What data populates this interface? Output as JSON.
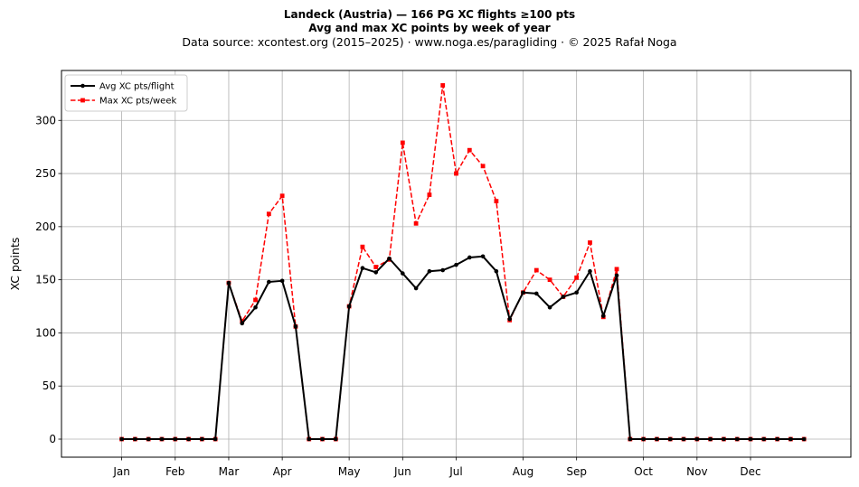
{
  "chart_data": {
    "type": "line",
    "title": "Landeck (Austria)  —  166 PG XC flights ≥100 pts",
    "subtitle": "Avg and max XC points by week of year",
    "source": "Data source: xcontest.org (2015–2025)  ·  www.noga.es/paragliding  ·  © 2025 Rafał Noga",
    "xlabel": "",
    "ylabel": "XC points",
    "x": [
      1,
      2,
      3,
      4,
      5,
      6,
      7,
      8,
      9,
      10,
      11,
      12,
      13,
      14,
      15,
      16,
      17,
      18,
      19,
      20,
      21,
      22,
      23,
      24,
      25,
      26,
      27,
      28,
      29,
      30,
      31,
      32,
      33,
      34,
      35,
      36,
      37,
      38,
      39,
      40,
      41,
      42,
      43,
      44,
      45,
      46,
      47,
      48,
      49,
      50,
      51,
      52
    ],
    "xlim": [
      -3.5,
      55.5
    ],
    "ylim": [
      -17,
      347
    ],
    "yticks": [
      0,
      50,
      100,
      150,
      200,
      250,
      300
    ],
    "xticks": [
      {
        "label": "Jan",
        "pos": 1
      },
      {
        "label": "Feb",
        "pos": 5
      },
      {
        "label": "Mar",
        "pos": 9
      },
      {
        "label": "Apr",
        "pos": 13
      },
      {
        "label": "May",
        "pos": 18
      },
      {
        "label": "Jun",
        "pos": 22
      },
      {
        "label": "Jul",
        "pos": 26
      },
      {
        "label": "Aug",
        "pos": 31
      },
      {
        "label": "Sep",
        "pos": 35
      },
      {
        "label": "Oct",
        "pos": 40
      },
      {
        "label": "Nov",
        "pos": 44
      },
      {
        "label": "Dec",
        "pos": 48
      }
    ],
    "grid": true,
    "legend_position": "upper-left",
    "series": [
      {
        "name": "Avg XC pts/flight",
        "color": "#000000",
        "style": "solid",
        "marker": "circle",
        "values": [
          0,
          0,
          0,
          0,
          0,
          0,
          0,
          0,
          147,
          109,
          124,
          148,
          149,
          106,
          0,
          0,
          0,
          125,
          161,
          157,
          170,
          156,
          142,
          158,
          159,
          164,
          171,
          172,
          158,
          113,
          138,
          137,
          124,
          134,
          138,
          158,
          116,
          154,
          0,
          0,
          0,
          0,
          0,
          0,
          0,
          0,
          0,
          0,
          0,
          0,
          0,
          0
        ]
      },
      {
        "name": "Max XC pts/week",
        "color": "#ff0000",
        "style": "dashed",
        "marker": "square",
        "values": [
          0,
          0,
          0,
          0,
          0,
          0,
          0,
          0,
          147,
          111,
          131,
          212,
          229,
          106,
          0,
          0,
          0,
          125,
          181,
          162,
          169,
          279,
          203,
          230,
          333,
          250,
          272,
          257,
          224,
          112,
          138,
          159,
          150,
          134,
          152,
          185,
          115,
          160,
          0,
          0,
          0,
          0,
          0,
          0,
          0,
          0,
          0,
          0,
          0,
          0,
          0,
          0
        ]
      }
    ]
  }
}
